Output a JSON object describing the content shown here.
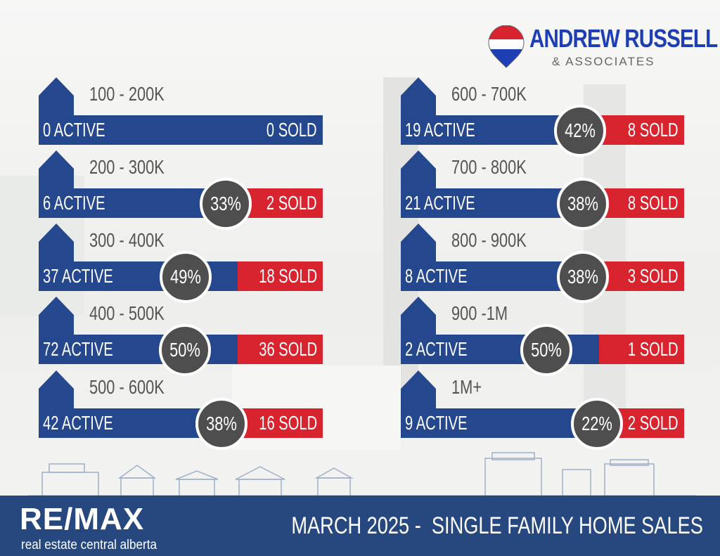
{
  "brand": {
    "name": "ANDREW RUSSELL",
    "sub": "& ASSOCIATES"
  },
  "footer": {
    "brand": "RE/MAX",
    "brand_sub": "real estate central alberta",
    "title": "MARCH 2025 -  SINGLE FAMILY HOME SALES"
  },
  "colors": {
    "active_bar": "#24478e",
    "sold_bar": "#d8242f",
    "percent_badge": "#4e4e4e",
    "footer": "#27487f",
    "logo_text": "#1d3fb3"
  },
  "icons": [
    "house-icon",
    "balloon-pin-icon",
    "skyline-illustration"
  ],
  "left": [
    {
      "range": "100 - 200K",
      "active": "0 ACTIVE",
      "percent": "",
      "sold": "0 SOLD",
      "sold_ratio": 0
    },
    {
      "range": "200 - 300K",
      "active": "6 ACTIVE",
      "percent": "33%",
      "sold": "2 SOLD",
      "sold_ratio": 0.33
    },
    {
      "range": "300 - 400K",
      "active": "37 ACTIVE",
      "percent": "49%",
      "sold": "18 SOLD",
      "sold_ratio": 0.49
    },
    {
      "range": "400 - 500K",
      "active": "72 ACTIVE",
      "percent": "50%",
      "sold": "36 SOLD",
      "sold_ratio": 0.5
    },
    {
      "range": "500 - 600K",
      "active": "42 ACTIVE",
      "percent": "38%",
      "sold": "16 SOLD",
      "sold_ratio": 0.38
    }
  ],
  "right": [
    {
      "range": "600 - 700K",
      "active": "19 ACTIVE",
      "percent": "42%",
      "sold": "8 SOLD",
      "sold_ratio": 0.42
    },
    {
      "range": "700 - 800K",
      "active": "21 ACTIVE",
      "percent": "38%",
      "sold": "8 SOLD",
      "sold_ratio": 0.38
    },
    {
      "range": "800 - 900K",
      "active": "8 ACTIVE",
      "percent": "38%",
      "sold": "3 SOLD",
      "sold_ratio": 0.38
    },
    {
      "range": "900 -1M",
      "active": "2 ACTIVE",
      "percent": "50%",
      "sold": "1 SOLD",
      "sold_ratio": 0.5
    },
    {
      "range": "1M+",
      "active": "9 ACTIVE",
      "percent": "22%",
      "sold": "2 SOLD",
      "sold_ratio": 0.22
    }
  ]
}
